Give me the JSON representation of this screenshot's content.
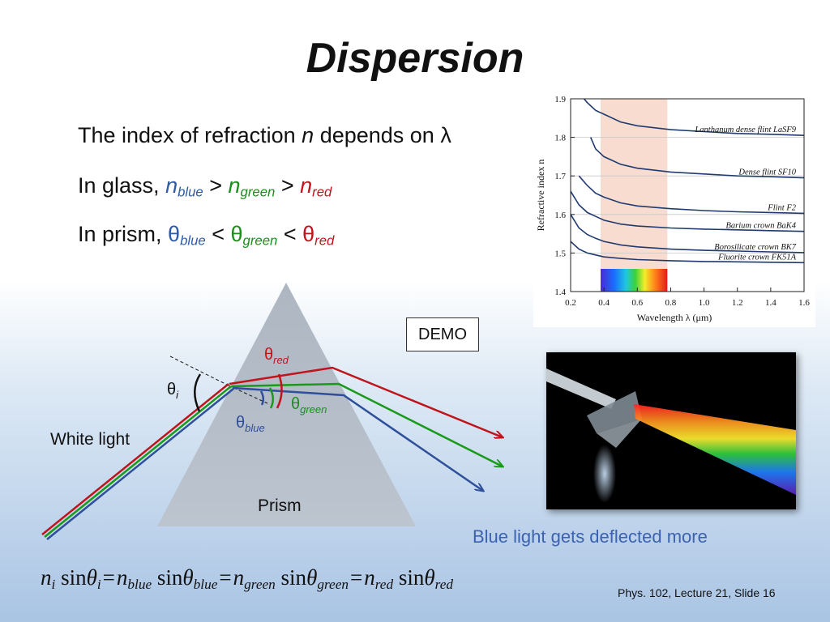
{
  "title": "Dispersion",
  "bullets": {
    "line1_pre": "The index of refraction ",
    "line1_n": "n",
    "line1_post": " depends on λ",
    "line2_pre": "In glass, ",
    "n": "n",
    "blue": "blue",
    "green": "green",
    "red": "red",
    "gt": " > ",
    "line3_pre": "In prism, ",
    "theta": "θ",
    "lt": " < "
  },
  "diagram": {
    "theta_red": "θ",
    "red_sub": "red",
    "theta_i": "θ",
    "i_sub": "i",
    "theta_green": "θ",
    "green_sub": "green",
    "theta_blue": "θ",
    "blue_sub": "blue",
    "white_light": "White light",
    "prism": "Prism",
    "colors": {
      "red": "#c0141c",
      "green": "#1a9a1a",
      "blue": "#2e4f9a",
      "prism": "#b7c0cc"
    }
  },
  "demo": "DEMO",
  "caption": "Blue light gets deflected more",
  "footer": "Phys. 102, Lecture 21, Slide 16",
  "formula": {
    "n": "n",
    "sin": "sin",
    "theta": "θ",
    "eq": "=",
    "i": "i",
    "blue": "blue",
    "green": "green",
    "red": "red"
  },
  "chart_data": {
    "type": "line",
    "xlabel": "Wavelength λ (μm)",
    "ylabel": "Refractive index n",
    "xlim": [
      0.2,
      1.6
    ],
    "ylim": [
      1.4,
      1.9
    ],
    "xticks": [
      "0.2",
      "0.4",
      "0.6",
      "0.8",
      "1.0",
      "1.2",
      "1.4",
      "1.6"
    ],
    "yticks": [
      "1.4",
      "1.5",
      "1.6",
      "1.7",
      "1.8",
      "1.9"
    ],
    "visible_band": [
      0.38,
      0.78
    ],
    "grid": true,
    "series": [
      {
        "name": "Lanthanum dense flint LaSF9",
        "x": [
          0.28,
          0.3,
          0.35,
          0.4,
          0.5,
          0.6,
          0.8,
          1.0,
          1.2,
          1.4,
          1.6
        ],
        "y": [
          1.9,
          1.89,
          1.87,
          1.86,
          1.84,
          1.83,
          1.82,
          1.815,
          1.81,
          1.808,
          1.805
        ]
      },
      {
        "name": "Dense flint SF10",
        "x": [
          0.32,
          0.35,
          0.4,
          0.5,
          0.6,
          0.8,
          1.0,
          1.2,
          1.4,
          1.6
        ],
        "y": [
          1.8,
          1.77,
          1.75,
          1.73,
          1.72,
          1.71,
          1.705,
          1.7,
          1.698,
          1.695
        ]
      },
      {
        "name": "Flint F2",
        "x": [
          0.25,
          0.3,
          0.35,
          0.4,
          0.5,
          0.6,
          0.8,
          1.0,
          1.2,
          1.4,
          1.6
        ],
        "y": [
          1.7,
          1.675,
          1.655,
          1.645,
          1.63,
          1.622,
          1.615,
          1.61,
          1.607,
          1.605,
          1.603
        ]
      },
      {
        "name": "Barium crown BaK4",
        "x": [
          0.2,
          0.25,
          0.3,
          0.35,
          0.4,
          0.5,
          0.6,
          0.8,
          1.0,
          1.2,
          1.4,
          1.6
        ],
        "y": [
          1.66,
          1.625,
          1.605,
          1.595,
          1.585,
          1.575,
          1.57,
          1.565,
          1.562,
          1.56,
          1.558,
          1.556
        ]
      },
      {
        "name": "Borosilicate crown BK7",
        "x": [
          0.2,
          0.25,
          0.3,
          0.35,
          0.4,
          0.5,
          0.6,
          0.8,
          1.0,
          1.2,
          1.4,
          1.6
        ],
        "y": [
          1.6,
          1.565,
          1.548,
          1.538,
          1.53,
          1.521,
          1.516,
          1.51,
          1.507,
          1.505,
          1.503,
          1.501
        ]
      },
      {
        "name": "Fluorite crown FK51A",
        "x": [
          0.2,
          0.25,
          0.3,
          0.35,
          0.4,
          0.5,
          0.6,
          0.8,
          1.0,
          1.2,
          1.4,
          1.6
        ],
        "y": [
          1.53,
          1.51,
          1.5,
          1.495,
          1.49,
          1.486,
          1.483,
          1.48,
          1.478,
          1.477,
          1.476,
          1.475
        ]
      }
    ]
  }
}
